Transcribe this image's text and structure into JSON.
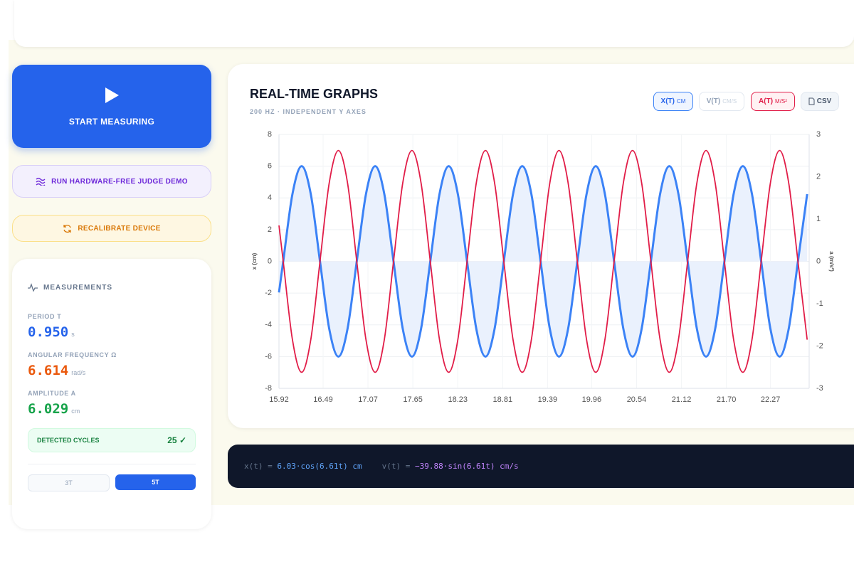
{
  "sidebar": {
    "start_button": "START MEASURING",
    "demo_button": "RUN HARDWARE-FREE JUDGE DEMO",
    "recalibrate_button": "RECALIBRATE DEVICE",
    "measurements": {
      "title": "MEASUREMENTS",
      "items": [
        {
          "label": "PERIOD T",
          "value": "0.950",
          "unit": "s"
        },
        {
          "label": "ANGULAR FREQUENCY Ω",
          "value": "6.614",
          "unit": "rad/s"
        },
        {
          "label": "AMPLITUDE A",
          "value": "6.029",
          "unit": "cm"
        }
      ],
      "cycles": {
        "label": "DETECTED CYCLES",
        "value": "25",
        "icon": "✓"
      },
      "window_buttons": [
        "3T",
        "5T"
      ]
    }
  },
  "toggles": {
    "x_unit": "cm",
    "v_name": "v(t)",
    "v_unit": "cm/s",
    "a_unit": "m/s²",
    "csv": "CSV"
  },
  "equations": [
    {
      "lhs": "x(t) =",
      "rhs": "6.03·cos(6.61t) cm"
    },
    {
      "lhs": "v(t) =",
      "rhs": "−39.88·sin(6.61t) cm/s"
    }
  ],
  "chart_data": {
    "type": "line",
    "title": "REAL-TIME GRAPHS",
    "subtitle": "200 HZ · INDEPENDENT Y AXES",
    "y_label": "x (cm)",
    "y2_label": "a (m/s²)",
    "x": [
      15.92,
      15.975,
      16.094,
      16.213,
      16.331,
      16.45,
      16.569,
      16.688,
      16.806,
      16.925,
      17.044,
      17.163,
      17.281,
      17.4,
      17.519,
      17.638,
      17.756,
      17.875,
      17.994,
      18.113,
      18.231,
      18.35,
      18.469,
      18.588,
      18.706,
      18.825,
      18.944,
      19.063,
      19.181,
      19.3,
      19.419,
      19.538,
      19.656,
      19.775,
      19.894,
      20.013,
      20.131,
      20.25,
      20.369,
      20.488,
      20.606,
      20.725,
      20.844,
      20.963,
      21.081,
      21.2,
      21.319,
      21.438,
      21.556,
      21.675,
      21.794,
      21.913,
      22.031,
      22.15,
      22.269,
      22.388,
      22.506,
      22.625,
      22.744
    ],
    "series": [
      {
        "name": "x(t)",
        "color": "#3b82f6",
        "fill": "#eaf1fd",
        "values": [
          -1.96,
          0,
          4.24,
          6,
          4.24,
          0,
          -4.24,
          -6,
          -4.24,
          0,
          4.24,
          6,
          4.24,
          0,
          -4.24,
          -6,
          -4.24,
          0,
          4.24,
          6,
          4.24,
          0,
          -4.24,
          -6,
          -4.24,
          0,
          4.24,
          6,
          4.24,
          0,
          -4.24,
          -6,
          -4.24,
          0,
          4.24,
          6,
          4.24,
          0,
          -4.24,
          -6,
          -4.24,
          0,
          4.24,
          6,
          4.24,
          0,
          -4.24,
          -6,
          -4.24,
          0,
          4.24,
          6,
          4.24,
          0,
          -4.24,
          -6,
          -4.24,
          0,
          4.24
        ]
      },
      {
        "name": "a(t)",
        "color": "#e11d48",
        "axis": "y2",
        "values": [
          0.85,
          0,
          -1.85,
          -2.62,
          -1.85,
          0,
          1.85,
          2.62,
          1.85,
          0,
          -1.85,
          -2.62,
          -1.85,
          0,
          1.85,
          2.62,
          1.85,
          0,
          -1.85,
          -2.62,
          -1.85,
          0,
          1.85,
          2.62,
          1.85,
          0,
          -1.85,
          -2.62,
          -1.85,
          0,
          1.85,
          2.62,
          1.85,
          0,
          -1.85,
          -2.62,
          -1.85,
          0,
          1.85,
          2.62,
          1.85,
          0,
          -1.85,
          -2.62,
          -1.85,
          0,
          1.85,
          2.62,
          1.85,
          0,
          -1.85,
          -2.62,
          -1.85,
          0,
          1.85,
          2.62,
          1.85,
          0,
          -1.85
        ]
      }
    ],
    "xlim": [
      15.92,
      22.77
    ],
    "xticks": [
      15.92,
      16.49,
      17.07,
      17.65,
      18.23,
      18.81,
      19.39,
      19.96,
      20.54,
      21.12,
      {
        "value": 21.7,
        "label": "21.70"
      },
      22.27
    ],
    "ylim": [
      -8,
      8
    ],
    "yticks": [
      -8,
      -6,
      -4,
      -2,
      0,
      2,
      4,
      6,
      8
    ],
    "y2lim": [
      -3,
      3
    ],
    "y2ticks": [
      -3,
      -2,
      -1,
      0,
      1,
      2,
      3
    ],
    "grid": true
  }
}
